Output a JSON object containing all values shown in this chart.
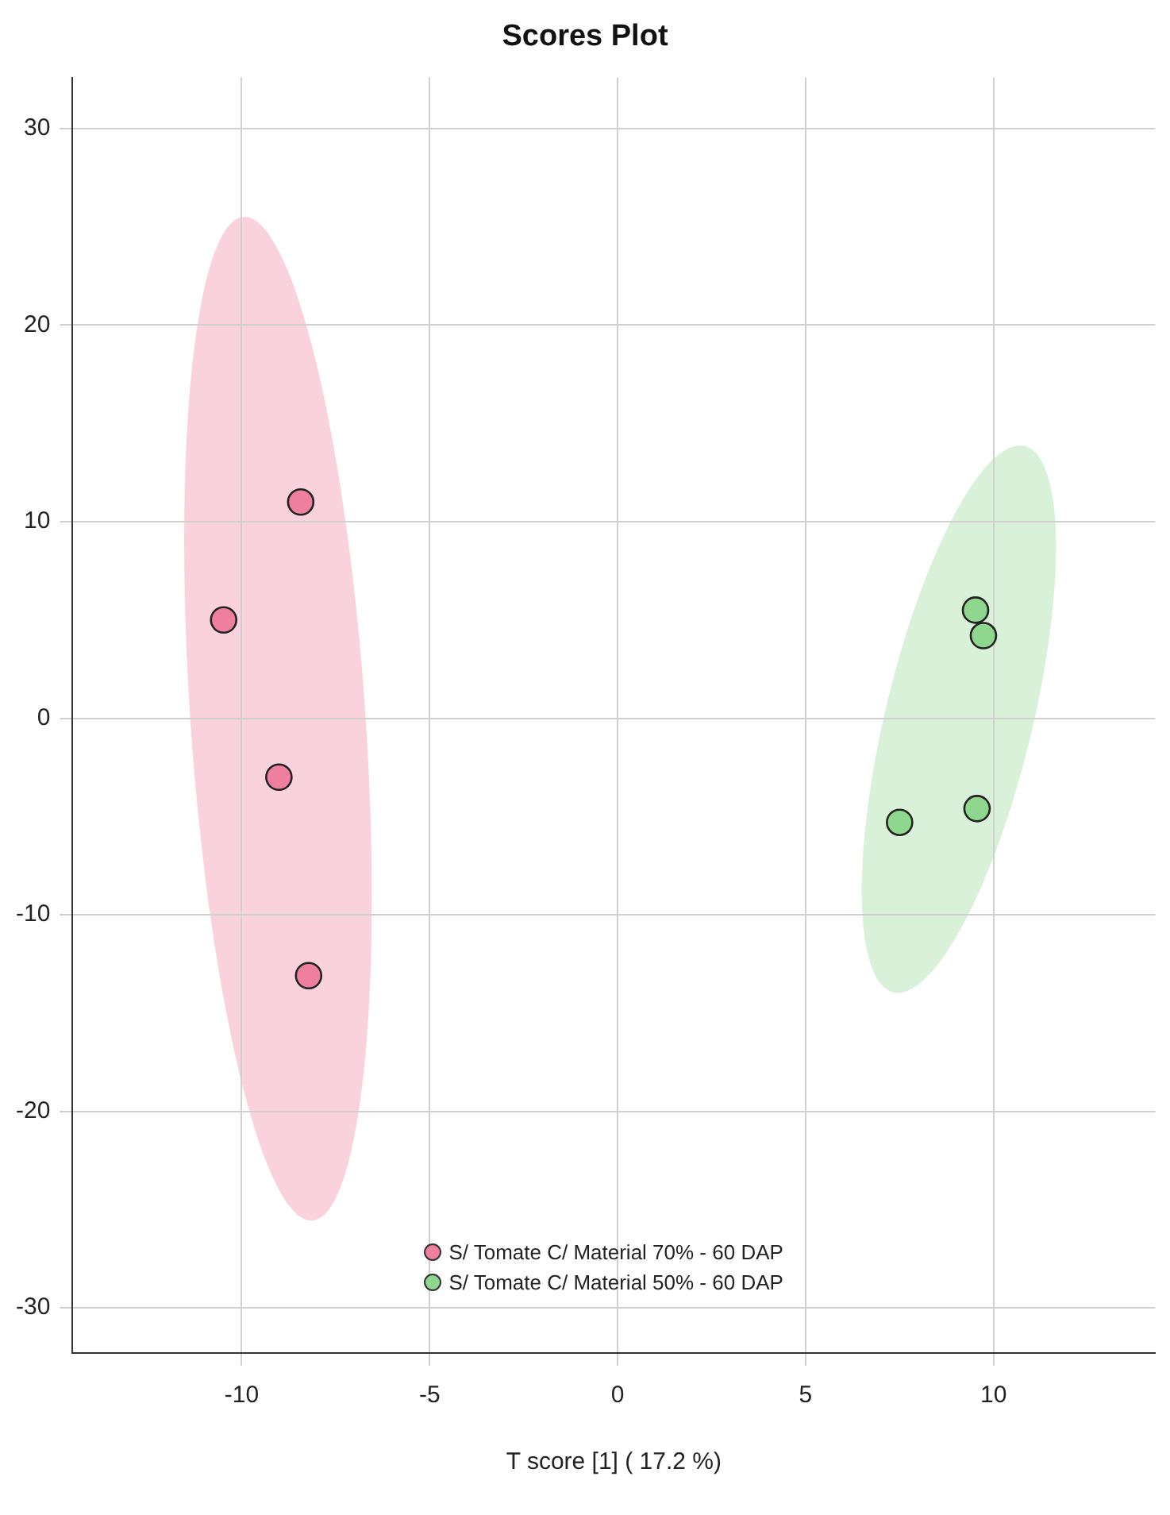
{
  "chart_data": {
    "type": "scatter",
    "title": "Scores Plot",
    "xlabel": "T score [1] ( 17.2 %)",
    "series": [
      {
        "name": "S/ Tomate C/ Material 70% - 60 DAP",
        "color": "#ee7f9f",
        "x": [
          -8.43,
          -10.48,
          -9.01,
          -8.22
        ],
        "values": [
          11.0,
          5.0,
          -3.0,
          -13.1
        ]
      },
      {
        "name": "S/ Tomate C/ Material 50% - 60 DAP",
        "color": "#8fd68f",
        "x": [
          9.52,
          9.73,
          7.5,
          9.56
        ],
        "values": [
          5.5,
          4.2,
          -5.3,
          -4.6
        ]
      }
    ],
    "xlim": [
      -14.5,
      14.3
    ],
    "ylim": [
      -32.3,
      32.6
    ],
    "xticks": [
      -10,
      -5,
      0,
      5,
      10
    ],
    "yticks": [
      -30,
      -20,
      -10,
      0,
      10,
      20,
      30
    ],
    "grid": true,
    "legend": "bottom",
    "marker": "circle"
  }
}
